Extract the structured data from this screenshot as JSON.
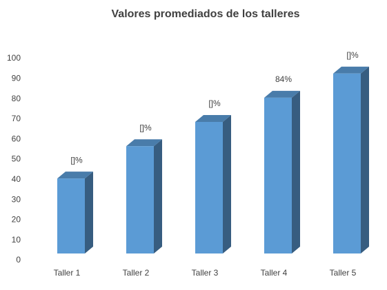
{
  "chart_data": {
    "type": "bar3d",
    "title": "Valores promediados de los talleres",
    "categories": [
      "Taller 1",
      "Taller 2",
      "Taller 3",
      "Taller 4",
      "Taller 5"
    ],
    "values": [
      44,
      60,
      72,
      84,
      96
    ],
    "value_labels": [
      "[]%",
      "[]%",
      "[]%",
      "84%",
      "[]%"
    ],
    "color": "#5b9bd5",
    "ylim": [
      0,
      100
    ],
    "yticks": [
      0,
      10,
      20,
      30,
      40,
      50,
      60,
      70,
      80,
      90,
      100
    ],
    "grid": false
  }
}
